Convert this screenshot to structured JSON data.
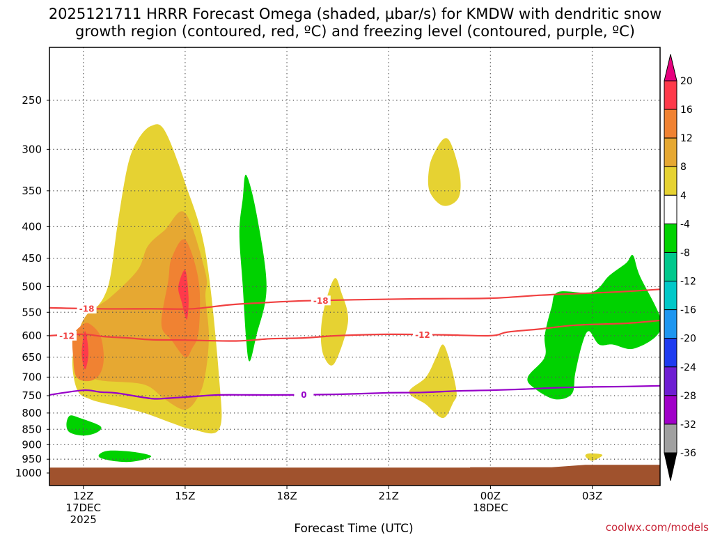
{
  "chart_data": {
    "type": "contour-timeheight",
    "title_lines": [
      "2025121711 HRRR Forecast Omega (shaded, µbar/s) for KMDW with dendritic snow",
      "growth region (contoured, red, ºC) and freezing level (contoured, purple, ºC)"
    ],
    "xlabel": "Forecast Time (UTC)",
    "x_range_hours": [
      11,
      29
    ],
    "x_ticks": [
      {
        "hour": 12,
        "lines": [
          "12Z",
          "17DEC",
          "2025"
        ]
      },
      {
        "hour": 15,
        "lines": [
          "15Z"
        ]
      },
      {
        "hour": 18,
        "lines": [
          "18Z"
        ]
      },
      {
        "hour": 21,
        "lines": [
          "21Z"
        ]
      },
      {
        "hour": 24,
        "lines": [
          "00Z",
          "18DEC"
        ]
      },
      {
        "hour": 27,
        "lines": [
          "03Z"
        ]
      }
    ],
    "y_axis": {
      "scale": "log-pressure",
      "units": "hPa",
      "range": [
        1000,
        200
      ],
      "ticks": [
        250,
        300,
        350,
        400,
        450,
        500,
        550,
        600,
        650,
        700,
        750,
        800,
        850,
        900,
        950,
        1000
      ]
    },
    "grid": true,
    "colorbar": {
      "labels": [
        "20",
        "16",
        "12",
        "8",
        "4",
        "-4",
        "-8",
        "-12",
        "-16",
        "-20",
        "-24",
        "-28",
        "-32",
        "-36"
      ],
      "colors": [
        "#ff3a4a",
        "#f08232",
        "#e6a832",
        "#e6d232",
        "#ffffff",
        "#00d200",
        "#00c88c",
        "#00c8c8",
        "#1e96f0",
        "#1e3cf0",
        "#6e1ed2",
        "#a000c8",
        "#a0a0a0"
      ],
      "top_arrow_color": "#e6007e",
      "bottom_arrow_color": "#000000"
    },
    "omega_regions": [
      {
        "level": 4,
        "color": "#e6d232",
        "pts": [
          [
            14.0,
            275
          ],
          [
            14.4,
            280
          ],
          [
            15.0,
            340
          ],
          [
            15.6,
            440
          ],
          [
            16.0,
            700
          ],
          [
            16.0,
            850
          ],
          [
            15.2,
            850
          ],
          [
            14.6,
            830
          ],
          [
            13.8,
            800
          ],
          [
            13.0,
            780
          ],
          [
            12.2,
            760
          ],
          [
            11.8,
            730
          ],
          [
            11.7,
            640
          ],
          [
            12.2,
            560
          ],
          [
            12.6,
            520
          ],
          [
            12.8,
            480
          ],
          [
            13.0,
            400
          ],
          [
            13.3,
            320
          ],
          [
            13.6,
            290
          ]
        ]
      },
      {
        "level": 8,
        "color": "#e6a832",
        "pts": [
          [
            14.4,
            405
          ],
          [
            15.0,
            380
          ],
          [
            15.6,
            475
          ],
          [
            15.6,
            520
          ],
          [
            15.7,
            600
          ],
          [
            15.6,
            690
          ],
          [
            15.4,
            750
          ],
          [
            15.0,
            790
          ],
          [
            14.4,
            760
          ],
          [
            13.8,
            720
          ],
          [
            12.6,
            710
          ],
          [
            12.2,
            700
          ],
          [
            11.8,
            680
          ],
          [
            11.8,
            610
          ],
          [
            12.1,
            555
          ],
          [
            12.8,
            520
          ],
          [
            13.6,
            470
          ],
          [
            13.9,
            430
          ]
        ]
      },
      {
        "level": 12,
        "color": "#f08232",
        "pts": [
          [
            14.6,
            450
          ],
          [
            15.0,
            420
          ],
          [
            15.4,
            490
          ],
          [
            15.4,
            590
          ],
          [
            15.2,
            630
          ],
          [
            15.0,
            650
          ],
          [
            14.6,
            610
          ],
          [
            14.3,
            575
          ],
          [
            14.5,
            490
          ]
        ]
      },
      {
        "level": 12,
        "color": "#f08232",
        "pts": [
          [
            12.2,
            575
          ],
          [
            12.5,
            600
          ],
          [
            12.6,
            650
          ],
          [
            12.5,
            690
          ],
          [
            12.2,
            710
          ],
          [
            11.8,
            700
          ],
          [
            11.7,
            650
          ],
          [
            11.7,
            600
          ],
          [
            12.0,
            575
          ]
        ]
      },
      {
        "level": 16,
        "color": "#ff3a4a",
        "pts": [
          [
            15.0,
            470
          ],
          [
            15.1,
            520
          ],
          [
            15.05,
            565
          ],
          [
            14.9,
            530
          ],
          [
            14.8,
            500
          ]
        ]
      },
      {
        "level": 16,
        "color": "#ff3a4a",
        "pts": [
          [
            12.05,
            590
          ],
          [
            12.15,
            640
          ],
          [
            12.05,
            680
          ],
          [
            11.95,
            640
          ]
        ]
      },
      {
        "level": 4,
        "color": "#e6d232",
        "pts": [
          [
            19.4,
            485
          ],
          [
            19.6,
            510
          ],
          [
            19.8,
            570
          ],
          [
            19.4,
            665
          ],
          [
            19.1,
            650
          ],
          [
            19.0,
            600
          ],
          [
            19.1,
            540
          ]
        ]
      },
      {
        "level": 4,
        "color": "#e6d232",
        "pts": [
          [
            22.65,
            288
          ],
          [
            22.85,
            295
          ],
          [
            23.1,
            330
          ],
          [
            23.05,
            360
          ],
          [
            22.6,
            370
          ],
          [
            22.2,
            350
          ],
          [
            22.2,
            320
          ],
          [
            22.4,
            300
          ]
        ]
      },
      {
        "level": 4,
        "color": "#e6d232",
        "pts": [
          [
            22.6,
            620
          ],
          [
            22.8,
            660
          ],
          [
            23.0,
            740
          ],
          [
            22.9,
            770
          ],
          [
            22.6,
            815
          ],
          [
            22.1,
            775
          ],
          [
            21.6,
            740
          ],
          [
            22.1,
            700
          ],
          [
            22.4,
            650
          ]
        ]
      },
      {
        "level": 4,
        "color": "#e6d232",
        "pts": [
          [
            26.9,
            930
          ],
          [
            27.3,
            935
          ],
          [
            27.0,
            955
          ],
          [
            26.8,
            940
          ]
        ]
      },
      {
        "level": -4,
        "color": "#00d200",
        "pts": [
          [
            16.8,
            330
          ],
          [
            17.1,
            380
          ],
          [
            17.4,
            500
          ],
          [
            17.1,
            600
          ],
          [
            16.9,
            660
          ],
          [
            16.8,
            610
          ],
          [
            16.7,
            500
          ],
          [
            16.6,
            410
          ],
          [
            16.7,
            360
          ]
        ]
      },
      {
        "level": -4,
        "color": "#00d200",
        "pts": [
          [
            11.6,
            808
          ],
          [
            11.9,
            815
          ],
          [
            12.5,
            840
          ],
          [
            12.4,
            860
          ],
          [
            12.0,
            870
          ],
          [
            11.6,
            860
          ],
          [
            11.5,
            835
          ]
        ]
      },
      {
        "level": -4,
        "color": "#00d200",
        "pts": [
          [
            12.8,
            920
          ],
          [
            13.5,
            925
          ],
          [
            14.0,
            940
          ],
          [
            13.5,
            958
          ],
          [
            13.0,
            958
          ],
          [
            12.5,
            945
          ],
          [
            12.5,
            930
          ]
        ]
      },
      {
        "level": -4,
        "color": "#00d200",
        "pts": [
          [
            26.0,
            510
          ],
          [
            27.0,
            510
          ],
          [
            27.5,
            480
          ],
          [
            28.0,
            458
          ],
          [
            28.2,
            445
          ],
          [
            28.4,
            480
          ],
          [
            29.0,
            560
          ],
          [
            28.9,
            600
          ],
          [
            28.2,
            630
          ],
          [
            27.6,
            620
          ],
          [
            27.2,
            620
          ],
          [
            26.9,
            590
          ],
          [
            26.7,
            620
          ],
          [
            26.5,
            690
          ],
          [
            26.4,
            745
          ],
          [
            25.9,
            760
          ],
          [
            25.3,
            730
          ],
          [
            25.1,
            700
          ],
          [
            25.6,
            650
          ],
          [
            25.6,
            600
          ],
          [
            25.8,
            540
          ]
        ]
      }
    ],
    "contours": [
      {
        "value": -18,
        "color": "#f04040",
        "label": "-18",
        "label_hours": [
          12.1,
          19.0
        ],
        "pts": [
          [
            11,
            541
          ],
          [
            12.5,
            543
          ],
          [
            14,
            543
          ],
          [
            15.2,
            543
          ],
          [
            16.3,
            535
          ],
          [
            17.5,
            530
          ],
          [
            18.5,
            527
          ],
          [
            20,
            525
          ],
          [
            22,
            523
          ],
          [
            24,
            522
          ],
          [
            25.5,
            516
          ],
          [
            27,
            512
          ],
          [
            28,
            509
          ],
          [
            29,
            505
          ]
        ]
      },
      {
        "value": -12,
        "color": "#f04040",
        "label": "-12",
        "label_hours": [
          11.0,
          22.0
        ],
        "pts": [
          [
            11,
            600
          ],
          [
            12.0,
            597
          ],
          [
            12.6,
            602
          ],
          [
            13.3,
            605
          ],
          [
            14.0,
            609
          ],
          [
            15.0,
            610
          ],
          [
            16.5,
            612
          ],
          [
            17.5,
            607
          ],
          [
            18.5,
            605
          ],
          [
            19.5,
            600
          ],
          [
            21,
            597
          ],
          [
            22.5,
            598
          ],
          [
            24,
            600
          ],
          [
            24.5,
            592
          ],
          [
            25.5,
            585
          ],
          [
            26.5,
            577
          ],
          [
            28,
            573
          ],
          [
            29,
            567
          ]
        ]
      },
      {
        "value": 0,
        "color": "#9600c8",
        "label": "0",
        "label_hours": [
          18.5
        ],
        "pts": [
          [
            11,
            748
          ],
          [
            12.0,
            735
          ],
          [
            12.5,
            740
          ],
          [
            13.0,
            743
          ],
          [
            14.0,
            758
          ],
          [
            14.5,
            757
          ],
          [
            15.3,
            752
          ],
          [
            16.0,
            748
          ],
          [
            17,
            748
          ],
          [
            18,
            748
          ],
          [
            19,
            747
          ],
          [
            20,
            745
          ],
          [
            21,
            742
          ],
          [
            22,
            741
          ],
          [
            23,
            737
          ],
          [
            24,
            735
          ],
          [
            25,
            732
          ],
          [
            26,
            728
          ],
          [
            27,
            726
          ],
          [
            28,
            725
          ],
          [
            29,
            723
          ]
        ]
      }
    ],
    "ground": {
      "color": "#a0522d",
      "top_pressure_left": 980,
      "top_pressure_right": 970
    }
  },
  "credit": "coolwx.com/models"
}
